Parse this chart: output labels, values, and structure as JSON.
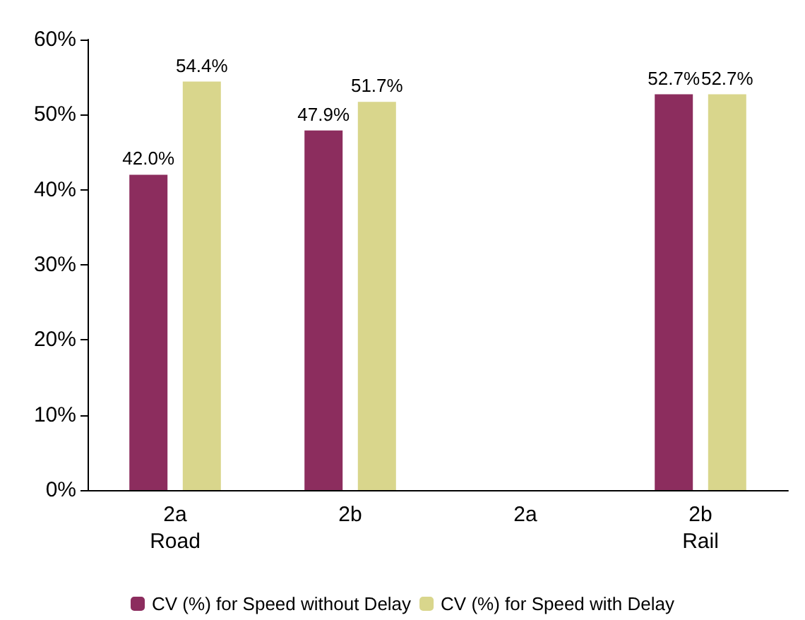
{
  "chart_data": {
    "type": "bar",
    "categories": [
      "2a\nRoad",
      "2b",
      "2a",
      "2b\nRail"
    ],
    "series": [
      {
        "name": "CV (%) for Speed without Delay",
        "color": "#8c2d5e",
        "values": [
          42.0,
          47.9,
          null,
          52.7
        ],
        "value_labels": [
          "42.0%",
          "47.9%",
          null,
          "52.7%"
        ]
      },
      {
        "name": "CV (%) for Speed with Delay",
        "color": "#d9d68c",
        "values": [
          54.4,
          51.7,
          null,
          52.7
        ],
        "value_labels": [
          "54.4%",
          "51.7%",
          null,
          "52.7%"
        ]
      }
    ],
    "ylim": [
      0,
      60
    ],
    "yticks": [
      {
        "value": 0,
        "label": "0%"
      },
      {
        "value": 10,
        "label": "10%"
      },
      {
        "value": 20,
        "label": "20%"
      },
      {
        "value": 30,
        "label": "30%"
      },
      {
        "value": 40,
        "label": "40%"
      },
      {
        "value": 50,
        "label": "50%"
      },
      {
        "value": 60,
        "label": "60%"
      }
    ],
    "grid": false,
    "legend": "bottom"
  }
}
